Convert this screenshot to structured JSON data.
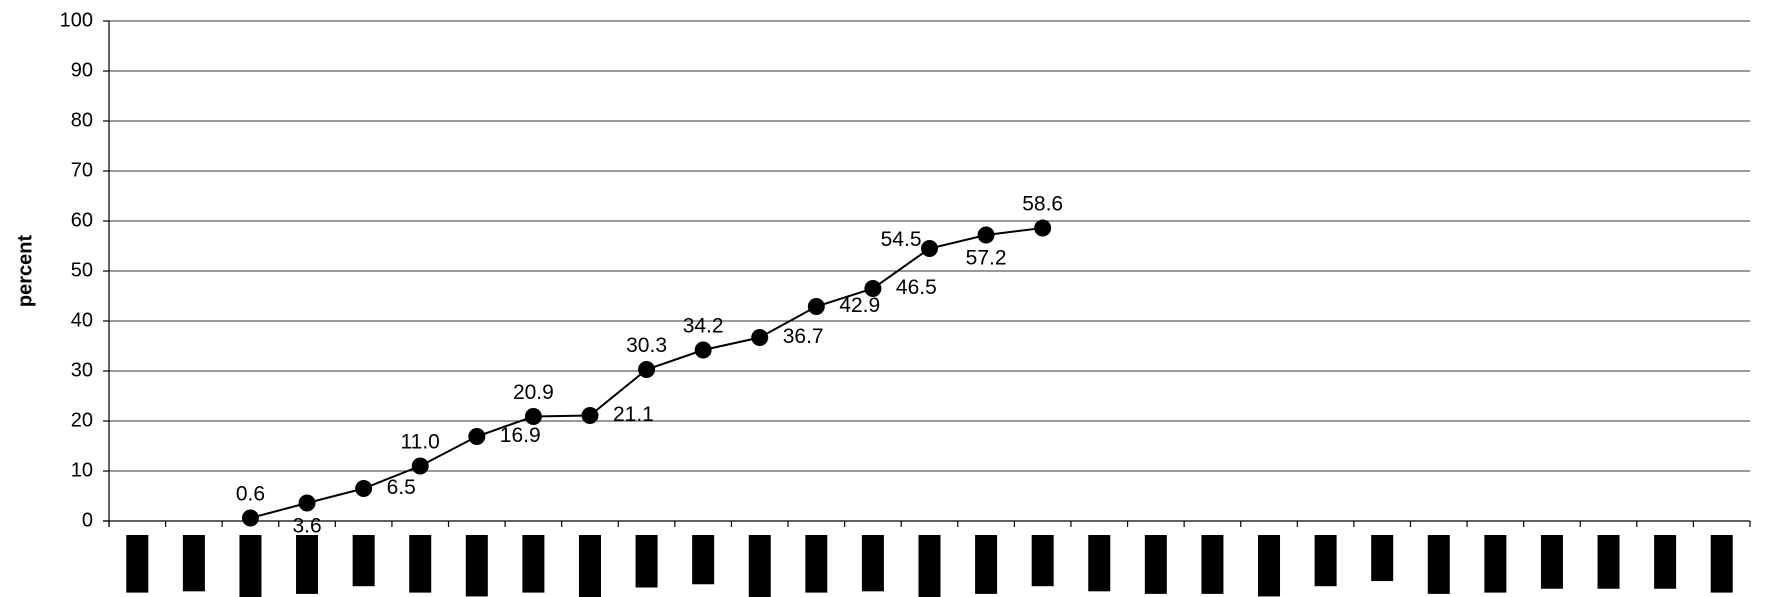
{
  "chart_data": {
    "type": "line",
    "title": "",
    "xlabel": "",
    "ylabel": "percent",
    "ylim": [
      0,
      100
    ],
    "yticks": [
      0,
      10,
      20,
      30,
      40,
      50,
      60,
      70,
      80,
      90,
      100
    ],
    "grid": true,
    "legend": "none",
    "category_count": 29,
    "series": [
      {
        "x": [
          2,
          3,
          4,
          5,
          6,
          7,
          8,
          9,
          10,
          11,
          12,
          13,
          14,
          15,
          16
        ],
        "values": [
          0.6,
          3.6,
          6.5,
          11.0,
          16.9,
          20.9,
          21.1,
          30.3,
          34.2,
          36.7,
          42.9,
          46.5,
          54.5,
          57.2,
          58.6
        ],
        "labels": [
          "0.6",
          "3.6",
          "6.5",
          "11.0",
          "16.9",
          "20.9",
          "21.1",
          "30.3",
          "34.2",
          "36.7",
          "42.9",
          "46.5",
          "54.5",
          "57.2",
          "58.6"
        ],
        "label_positions": [
          "above",
          "below",
          "right",
          "above",
          "right",
          "above",
          "right",
          "above",
          "above",
          "right",
          "right",
          "right",
          "left",
          "below",
          "above"
        ],
        "color": "#000000"
      }
    ]
  }
}
